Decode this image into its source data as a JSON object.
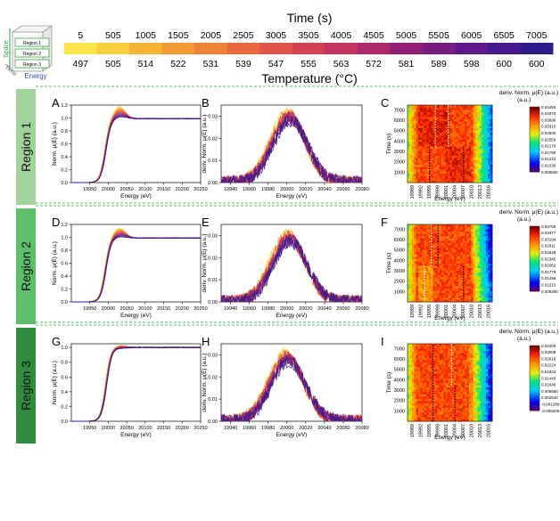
{
  "header": {
    "time_title": "Time (s)",
    "temp_title": "Temperature (°C)",
    "times": [
      "5",
      "505",
      "1005",
      "1505",
      "2005",
      "2505",
      "3005",
      "3505",
      "4005",
      "4505",
      "5005",
      "5505",
      "6005",
      "6505",
      "7005"
    ],
    "temps": [
      "497",
      "505",
      "514",
      "522",
      "531",
      "539",
      "547",
      "555",
      "563",
      "572",
      "581",
      "589",
      "598",
      "600",
      "600"
    ],
    "colors": [
      "#fbe64a",
      "#f7cf3a",
      "#f5b533",
      "#f29a34",
      "#ee8138",
      "#e9693f",
      "#e05348",
      "#d34253",
      "#c2335f",
      "#ac296b",
      "#922176",
      "#781c80",
      "#5e1a88",
      "#441a8e",
      "#2f1b8a"
    ]
  },
  "cube": {
    "regions": [
      "Region 1",
      "Region 2",
      "Region 3"
    ],
    "axis_time": "Time",
    "axis_space": "Space",
    "axis_energy": "Energy"
  },
  "rows": [
    {
      "region_label": "Region 1",
      "band_color": "#9fd39a"
    },
    {
      "region_label": "Region 2",
      "band_color": "#5cc06a"
    },
    {
      "region_label": "Region 3",
      "band_color": "#2e8e3d"
    }
  ],
  "icons": {
    "cube": "region-cube-icon"
  },
  "chart_data": [
    {
      "id": "A",
      "type": "line",
      "ylabel": "Norm. μ(E) (a.u.)",
      "xlabel": "Energy (eV)",
      "xlim": [
        19900,
        20250
      ],
      "ylim": [
        0.0,
        1.2
      ],
      "xticks": [
        19950,
        20000,
        20050,
        20100,
        20150,
        20200,
        20250
      ],
      "yticks": [
        0.0,
        0.2,
        0.4,
        0.6,
        0.8,
        1.0,
        1.2
      ],
      "edge_center": 19990,
      "peak_early": 1.18,
      "peak_late": 1.02,
      "post_edge": 0.99
    },
    {
      "id": "B",
      "type": "line",
      "ylabel": "deriv. Norm. μ(E) (a.u.)",
      "xlabel": "Energy (eV)",
      "xlim": [
        19930,
        20080
      ],
      "ylim": [
        0.0,
        0.035
      ],
      "xticks": [
        19940,
        19960,
        19980,
        20000,
        20020,
        20040,
        20060,
        20080
      ],
      "yticks": [
        0.0,
        0.01,
        0.02,
        0.03
      ],
      "ytick_labels": [
        "0.00",
        "0.01",
        "0.02",
        "0.03"
      ],
      "peak_center": 20000,
      "peak_height": 0.031
    },
    {
      "id": "C",
      "type": "heatmap",
      "colorbar_title": "deriv. Norm. μ(E) (a.u.)",
      "colorbar_ticks": [
        "0.04450",
        "0.04070",
        "0.03690",
        "0.03310",
        "0.02930",
        "0.02550",
        "0.02170",
        "0.01790",
        "0.01410",
        "0.01030",
        "0.006500"
      ],
      "ylabel": "Time (s)",
      "xlabel": "Energy (eV)",
      "yticks": [
        1000,
        2000,
        3000,
        4000,
        5000,
        6000,
        7000
      ],
      "ylim": [
        0,
        7450
      ],
      "xticks": [
        "19989",
        "19992",
        "19995",
        "19998",
        "20001",
        "20004",
        "20007",
        "20010",
        "20013",
        "20016"
      ],
      "switch_time": 3450
    },
    {
      "id": "D",
      "type": "line",
      "ylabel": "Norm. μ(E) (a.u.)",
      "xlabel": "Energy (eV)",
      "xlim": [
        19900,
        20250
      ],
      "ylim": [
        0.0,
        1.2
      ],
      "xticks": [
        19950,
        20000,
        20050,
        20100,
        20150,
        20200,
        20250
      ],
      "yticks": [
        0.0,
        0.2,
        0.4,
        0.6,
        0.8,
        1.0,
        1.2
      ],
      "edge_center": 19990,
      "peak_early": 1.15,
      "peak_late": 1.01,
      "post_edge": 0.99
    },
    {
      "id": "E",
      "type": "line",
      "ylabel": "deriv. Norm. μ(E) (a.u.)",
      "xlabel": "Energy (eV)",
      "xlim": [
        19930,
        20080
      ],
      "ylim": [
        0.0,
        0.035
      ],
      "xticks": [
        19940,
        19960,
        19980,
        20000,
        20020,
        20040,
        20060,
        20080
      ],
      "yticks": [
        0.0,
        0.01,
        0.02,
        0.03
      ],
      "ytick_labels": [
        "0.00",
        "0.01",
        "0.02",
        "0.03"
      ],
      "peak_center": 20000,
      "peak_height": 0.03
    },
    {
      "id": "F",
      "type": "heatmap",
      "colorbar_title": "deriv. Norm. μ(E) (a.u.)",
      "colorbar_ticks": [
        "0.03760",
        "0.03477",
        "0.03194",
        "0.02911",
        "0.02628",
        "0.02345",
        "0.02062",
        "0.01779",
        "0.01496",
        "0.01213",
        "0.009300"
      ],
      "ylabel": "Time (s)",
      "xlabel": "Energy (eV)",
      "yticks": [
        1000,
        2000,
        3000,
        4000,
        5000,
        6000,
        7000
      ],
      "ylim": [
        0,
        7450
      ],
      "xticks": [
        "19989",
        "19992",
        "19995",
        "19998",
        "20001",
        "20004",
        "20007",
        "20010",
        "20013",
        "20016"
      ],
      "switch_time": 3450
    },
    {
      "id": "G",
      "type": "line",
      "ylabel": "Norm. μ(E) (a.u.)",
      "xlabel": "Energy (eV)",
      "xlim": [
        19900,
        20250
      ],
      "ylim": [
        0.0,
        1.05
      ],
      "xticks": [
        19950,
        20000,
        20050,
        20100,
        20150,
        20200,
        20250
      ],
      "yticks": [
        0.0,
        0.2,
        0.4,
        0.6,
        0.8,
        1.0
      ],
      "edge_center": 19992,
      "peak_early": 1.03,
      "peak_late": 0.99,
      "post_edge": 1.0
    },
    {
      "id": "H",
      "type": "line",
      "ylabel": "deriv. Norm. μ(E) (a.u.)",
      "xlabel": "Energy (eV)",
      "xlim": [
        19930,
        20080
      ],
      "ylim": [
        0.0,
        0.035
      ],
      "xticks": [
        19940,
        19960,
        19980,
        20000,
        20020,
        20040,
        20060,
        20080
      ],
      "yticks": [
        0.0,
        0.01,
        0.02,
        0.03
      ],
      "ytick_labels": [
        "0.00",
        "0.01",
        "0.02",
        "0.03"
      ],
      "peak_center": 19998,
      "peak_height": 0.03
    },
    {
      "id": "I",
      "type": "heatmap",
      "colorbar_title": "deriv. Norm. μ(E) (a.u.)",
      "colorbar_ticks": [
        "0.03400",
        "0.03008",
        "0.02616",
        "0.02224",
        "0.01832",
        "0.01440",
        "0.01048",
        "0.006560",
        "0.002640",
        "-0.001280",
        "-0.005200"
      ],
      "ylabel": "Time (s)",
      "xlabel": "Energy (eV)",
      "yticks": [
        1000,
        2000,
        3000,
        4000,
        5000,
        6000,
        7000
      ],
      "ylim": [
        0,
        7450
      ],
      "xticks": [
        "19989",
        "19992",
        "19995",
        "19998",
        "20001",
        "20004",
        "20007",
        "20010",
        "20013",
        "20016"
      ],
      "switch_time": 3450
    }
  ]
}
